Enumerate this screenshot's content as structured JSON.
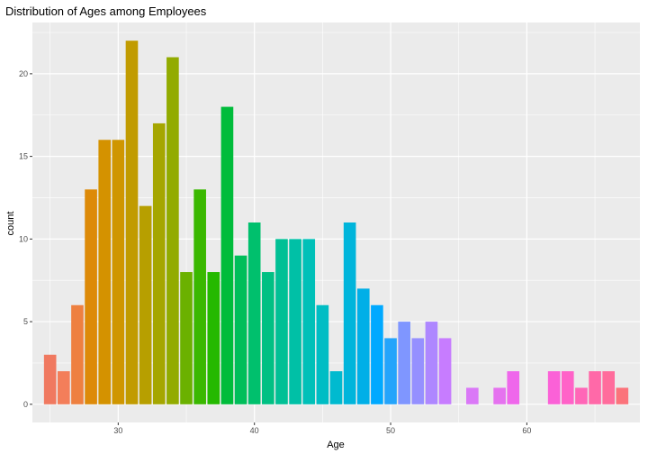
{
  "chart_data": {
    "type": "bar",
    "title": "Distribution of Ages among Employees",
    "xlabel": "Age",
    "ylabel": "count",
    "xlim": [
      23.7,
      68.3
    ],
    "ylim": [
      -1.1,
      23.1
    ],
    "xticks": [
      30,
      40,
      50,
      60
    ],
    "yticks": [
      0,
      5,
      10,
      15,
      20
    ],
    "grid": true,
    "legend": "none",
    "fill": "gradient by age (salmon → orange → olive → green → teal → blue → purple → magenta → pink)",
    "x": [
      25,
      26,
      27,
      28,
      29,
      30,
      31,
      32,
      33,
      34,
      35,
      36,
      37,
      38,
      39,
      40,
      41,
      42,
      43,
      44,
      45,
      46,
      47,
      48,
      49,
      50,
      51,
      52,
      53,
      54,
      56,
      58,
      59,
      62,
      63,
      64,
      65,
      66,
      67
    ],
    "values": [
      3,
      2,
      6,
      13,
      16,
      16,
      22,
      12,
      17,
      21,
      8,
      13,
      8,
      18,
      9,
      11,
      8,
      10,
      10,
      10,
      6,
      2,
      11,
      7,
      6,
      4,
      5,
      4,
      5,
      4,
      1,
      1,
      2,
      2,
      2,
      1,
      2,
      2,
      1
    ]
  },
  "colors": {
    "panel": "#ebebeb",
    "grid_major": "#ffffff",
    "bars": [
      "#F07960",
      "#F37E5A",
      "#EE8040",
      "#DD8A08",
      "#D49200",
      "#CF9600",
      "#C19B00",
      "#B79F00",
      "#A5A600",
      "#92AB00",
      "#6BB100",
      "#3AB800",
      "#25B900",
      "#00BC3B",
      "#00BE5A",
      "#00C06D",
      "#00C083",
      "#00C095",
      "#00C0A6",
      "#00C0B8",
      "#00BDC4",
      "#00BACF",
      "#00B5DB",
      "#00AFE7",
      "#00A9FF",
      "#24A4FB",
      "#7F96FF",
      "#9590FF",
      "#AE87FF",
      "#C77CFF",
      "#DA78F7",
      "#E572EF",
      "#EF67EB",
      "#FB61D7",
      "#FF62C8",
      "#FF66B7",
      "#FF69A8",
      "#FF6C9C",
      "#FB737B"
    ]
  }
}
